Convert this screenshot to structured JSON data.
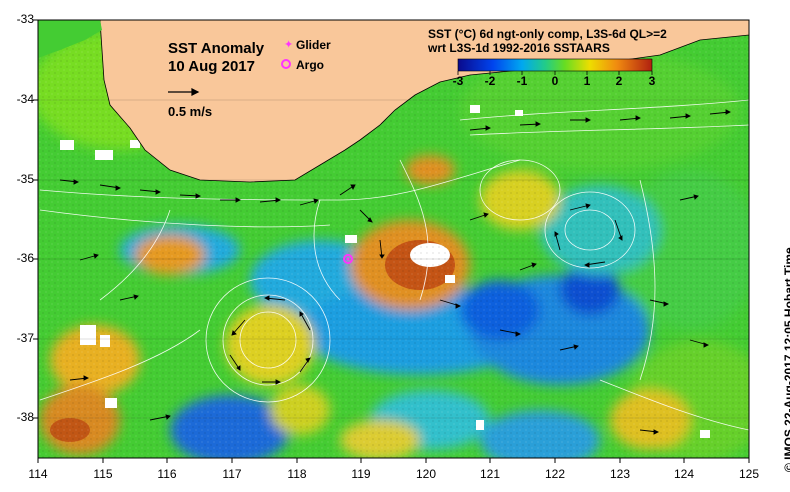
{
  "map": {
    "title": "SST Anomaly",
    "date": "10 Aug 2017",
    "vector_scale_label": "0.5 m/s",
    "legend": {
      "glider": "Glider",
      "argo": "Argo",
      "glider_color": "#ff33ff",
      "argo_color": "#ff33ff"
    },
    "product_line1": "SST (°C) 6d ngt-only comp, L3S-6d QL>=2",
    "product_line2": "wrt L3S-1d 1992-2016 SSTAARS",
    "colorbar": {
      "ticks": [
        "-3",
        "-2",
        "-1",
        "0",
        "1",
        "2",
        "3"
      ],
      "min": -3,
      "max": 3
    },
    "credit": "© IMOS 22-Aug-2017 12:05 Hobart Time",
    "land_color": "#f9c79a",
    "x_ticks": [
      "114",
      "115",
      "116",
      "117",
      "118",
      "119",
      "120",
      "121",
      "122",
      "123",
      "124",
      "125"
    ],
    "y_ticks": [
      "-33",
      "-34",
      "-35",
      "-36",
      "-37",
      "-38"
    ],
    "lon_range": [
      114,
      125
    ],
    "lat_range": [
      -38.5,
      -33
    ],
    "argo_position": {
      "lon": 118.8,
      "lat": -36.0
    }
  }
}
